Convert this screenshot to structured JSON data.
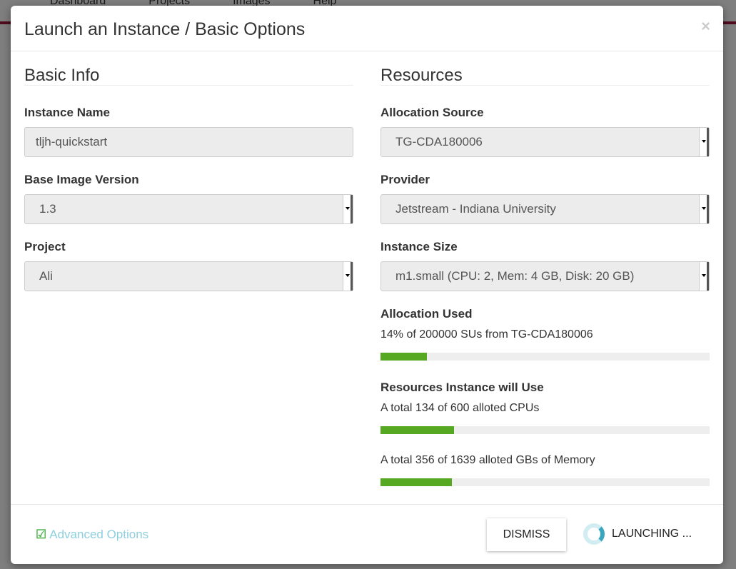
{
  "background": {
    "nav": [
      "Dashboard",
      "Projects",
      "Images",
      "Help"
    ]
  },
  "modal": {
    "title": "Launch an Instance / Basic Options",
    "close": "×",
    "basic": {
      "heading": "Basic Info",
      "instance_name": {
        "label": "Instance Name",
        "value": "tljh-quickstart"
      },
      "base_image_version": {
        "label": "Base Image Version",
        "value": "1.3"
      },
      "project": {
        "label": "Project",
        "value": "Ali"
      }
    },
    "resources": {
      "heading": "Resources",
      "allocation_source": {
        "label": "Allocation Source",
        "value": "TG-CDA180006"
      },
      "provider": {
        "label": "Provider",
        "value": "Jetstream - Indiana University"
      },
      "instance_size": {
        "label": "Instance Size",
        "value": "m1.small (CPU: 2, Mem: 4 GB, Disk: 20 GB)"
      },
      "allocation_used": {
        "label": "Allocation Used",
        "text": "14% of 200000 SUs from TG-CDA180006",
        "percent": 14
      },
      "will_use": {
        "label": "Resources Instance will Use",
        "cpu": {
          "text": "A total 134 of 600 alloted CPUs",
          "percent": 22.3
        },
        "memory": {
          "text": "A total 356 of 1639 alloted GBs of Memory",
          "percent": 21.7
        }
      }
    },
    "footer": {
      "advanced": "Advanced Options",
      "dismiss": "DISMISS",
      "launching": "LAUNCHING ..."
    },
    "colors": {
      "progress": "#56a823",
      "accent": "#8ecfdf"
    }
  }
}
